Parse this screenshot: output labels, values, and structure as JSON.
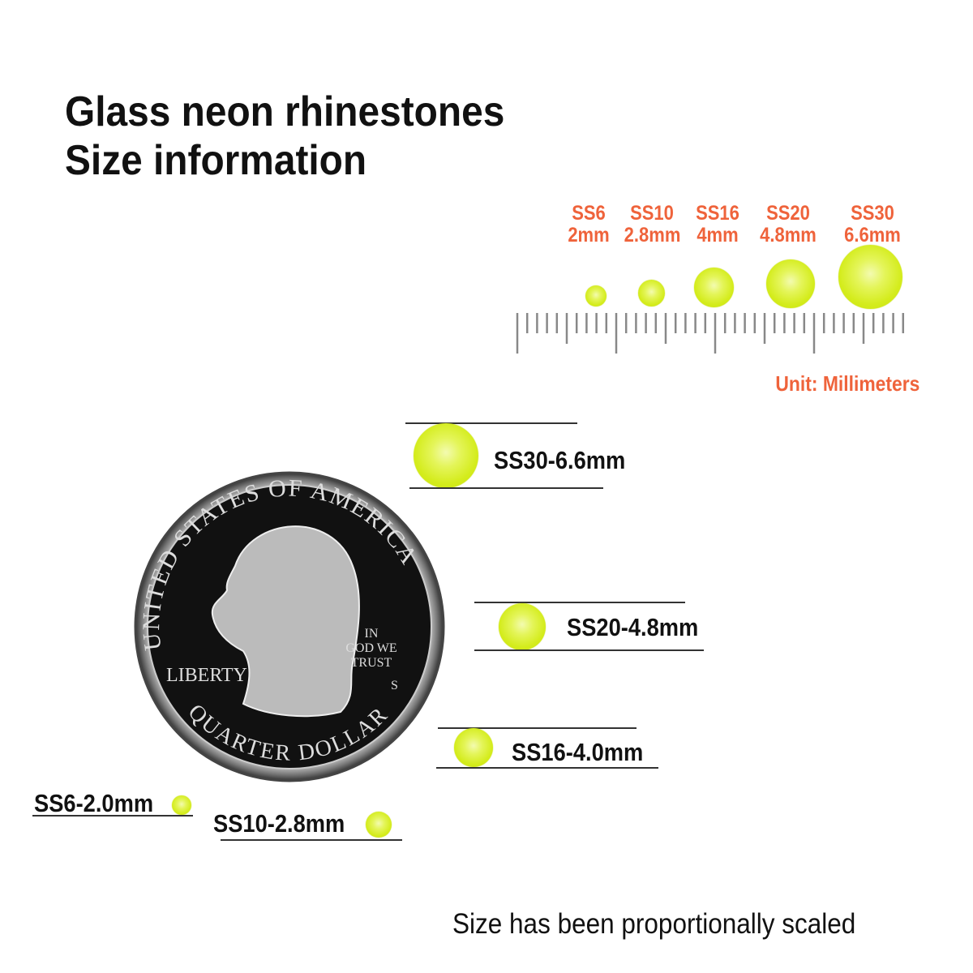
{
  "title": {
    "line1": "Glass neon rhinestones",
    "line2": "Size information"
  },
  "colors": {
    "accent": "#ef633b",
    "stone": "#d4ec1c",
    "text": "#111111"
  },
  "scale": {
    "sizes": [
      {
        "code": "SS6",
        "mm": "2mm"
      },
      {
        "code": "SS10",
        "mm": "2.8mm"
      },
      {
        "code": "SS16",
        "mm": "4mm"
      },
      {
        "code": "SS20",
        "mm": "4.8mm"
      },
      {
        "code": "SS30",
        "mm": "6.6mm"
      }
    ],
    "unit": "Unit: Millimeters"
  },
  "labels": {
    "ss30": "SS30-6.6mm",
    "ss20": "SS20-4.8mm",
    "ss16": "SS16-4.0mm",
    "ss6": "SS6-2.0mm",
    "ss10": "SS10-2.8mm"
  },
  "coin": {
    "top": "UNITED STATES OF AMERICA",
    "bottom": "QUARTER DOLLAR",
    "liberty": "LIBERTY",
    "motto": [
      "IN",
      "GOD WE",
      "TRUST"
    ],
    "mint": "S"
  },
  "footer": "Size has been proportionally scaled"
}
